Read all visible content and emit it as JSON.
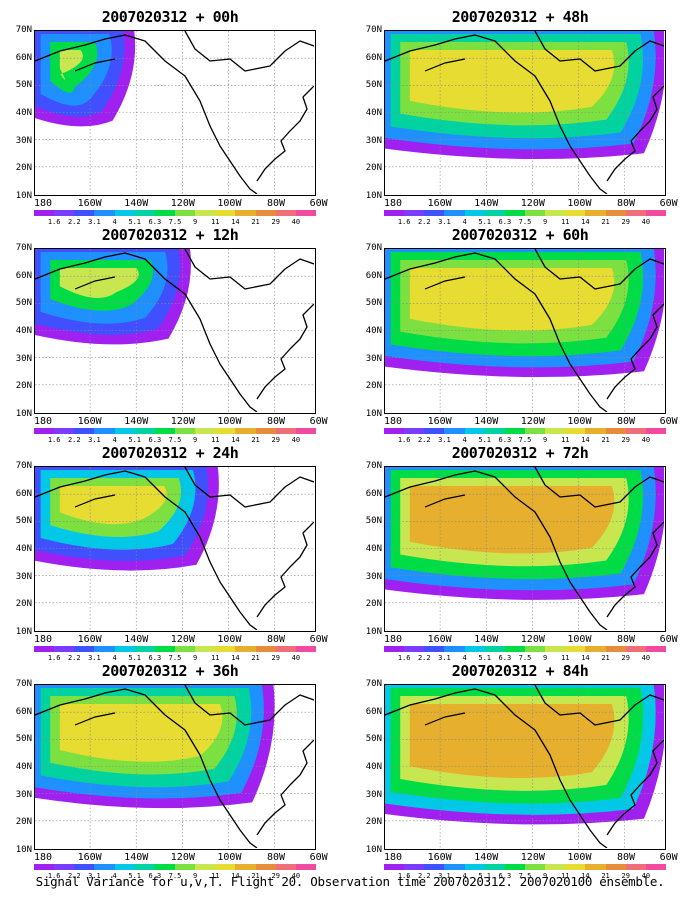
{
  "colors": [
    "#a020f0",
    "#7a3cff",
    "#4050ff",
    "#1e90ff",
    "#00c8e6",
    "#00d2a0",
    "#00dc46",
    "#7be040",
    "#c8e650",
    "#e6dc32",
    "#e6af2d",
    "#e68c3c",
    "#f06e78",
    "#f04ba0"
  ],
  "colorbar_labels": [
    "1.6",
    "2.2",
    "3.1",
    "4",
    "5.1",
    "6.3",
    "7.5",
    "9",
    "11",
    "14",
    "21",
    "29",
    "40"
  ],
  "panels": [
    {
      "title": "2007020312 + 00h"
    },
    {
      "title": "2007020312 + 48h"
    },
    {
      "title": "2007020312 + 12h"
    },
    {
      "title": "2007020312 + 60h"
    },
    {
      "title": "2007020312 + 24h"
    },
    {
      "title": "2007020312 + 72h"
    },
    {
      "title": "2007020312 + 36h"
    },
    {
      "title": "2007020312 + 84h"
    }
  ],
  "lat_labels": [
    "70N",
    "60N",
    "50N",
    "40N",
    "30N",
    "20N",
    "10N"
  ],
  "lon_labels": [
    "180",
    "160W",
    "140W",
    "120W",
    "100W",
    "80W",
    "60W"
  ],
  "caption": "Signal Variance for u,v,T. Flight 20. Observation time 2007020312. 2007020100 ensemble."
}
